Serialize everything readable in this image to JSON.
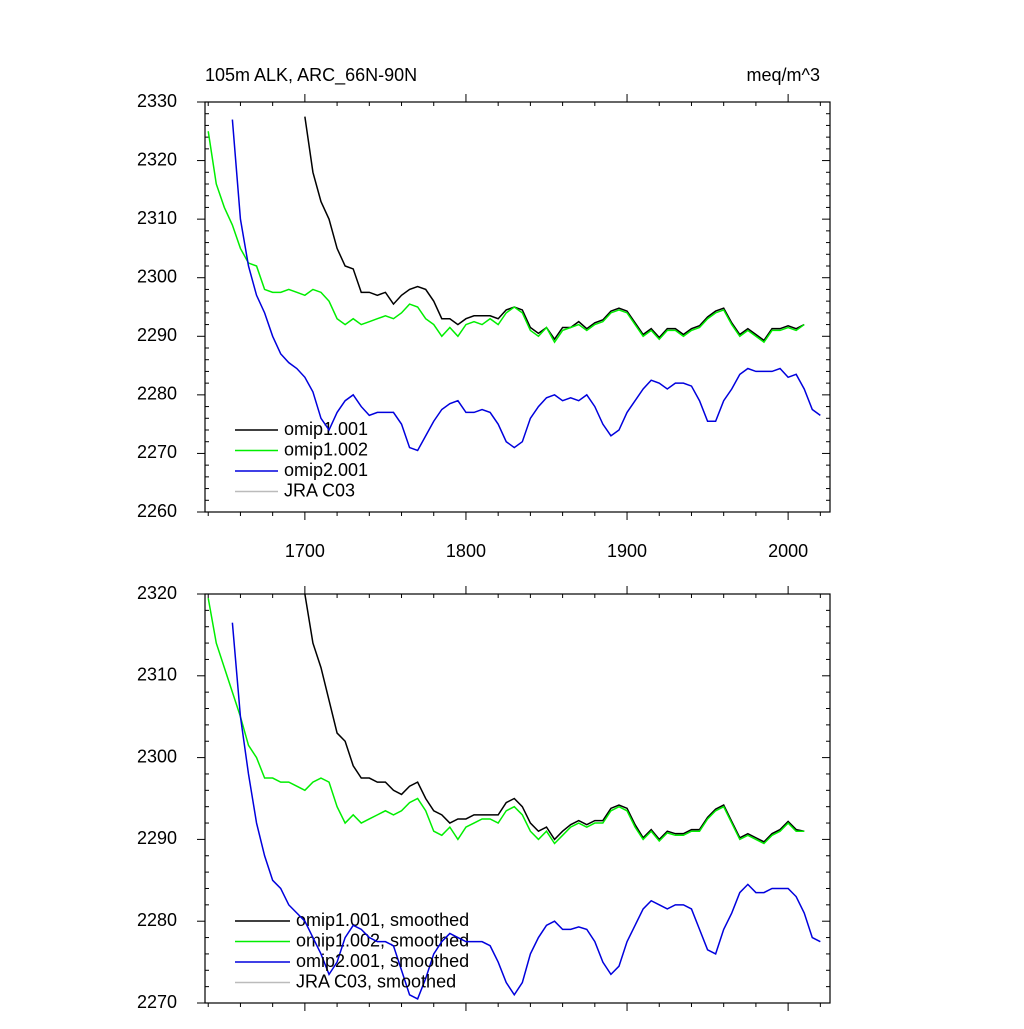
{
  "chart_data": [
    {
      "type": "line",
      "title": "105m ALK, ARC_66N-90N",
      "units": "meq/m^3",
      "xlim": [
        1638,
        2026
      ],
      "xticks": [
        1700,
        1800,
        1900,
        2000
      ],
      "ylim": [
        2260,
        2330
      ],
      "yticks": [
        2260,
        2270,
        2280,
        2290,
        2300,
        2310,
        2320,
        2330
      ],
      "legend": "lower left",
      "x": [
        1640,
        1645,
        1650,
        1655,
        1660,
        1665,
        1670,
        1675,
        1680,
        1685,
        1690,
        1695,
        1700,
        1705,
        1710,
        1715,
        1720,
        1725,
        1730,
        1735,
        1740,
        1745,
        1750,
        1755,
        1760,
        1765,
        1770,
        1775,
        1780,
        1785,
        1790,
        1795,
        1800,
        1805,
        1810,
        1815,
        1820,
        1825,
        1830,
        1835,
        1840,
        1845,
        1850,
        1855,
        1860,
        1865,
        1870,
        1875,
        1880,
        1885,
        1890,
        1895,
        1900,
        1905,
        1910,
        1915,
        1920,
        1925,
        1930,
        1935,
        1940,
        1945,
        1950,
        1955,
        1960,
        1965,
        1970,
        1975,
        1980,
        1985,
        1990,
        1995,
        2000,
        2005,
        2010,
        2015,
        2020
      ],
      "series": [
        {
          "name": "omip1.001",
          "color": "#000000",
          "values": [
            null,
            null,
            null,
            null,
            null,
            null,
            null,
            null,
            null,
            null,
            null,
            null,
            2327.5,
            2318,
            2313,
            2310,
            2305,
            2302,
            2301.5,
            2297.5,
            2297.5,
            2297,
            2297.5,
            2295.5,
            2297,
            2298,
            2298.5,
            2298,
            2296,
            2293,
            2293,
            2292,
            2293,
            2293.5,
            2293.5,
            2293.5,
            2293,
            2294.5,
            2295,
            2294.5,
            2291.5,
            2290.5,
            2291.5,
            2289.5,
            2291.5,
            2291.5,
            2292.5,
            2291.3,
            2292.3,
            2292.8,
            2294.3,
            2294.8,
            2294.3,
            2292.3,
            2290.3,
            2291.3,
            2289.8,
            2291.3,
            2291.3,
            2290.3,
            2291.3,
            2291.8,
            2293.3,
            2294.3,
            2294.8,
            2292.3,
            2290.3,
            2291.3,
            2290.3,
            2289.3,
            2291.3,
            2291.3,
            2291.8,
            2291.3,
            2292,
            null,
            null
          ]
        },
        {
          "name": "omip1.002",
          "color": "#00ee00",
          "values": [
            2325,
            2316,
            2312,
            2309,
            2305,
            2302.5,
            2302,
            2298,
            2297.5,
            2297.5,
            2298,
            2297.5,
            2297,
            2298,
            2297.5,
            2296,
            2293,
            2292,
            2293,
            2292,
            2292.5,
            2293,
            2293.5,
            2293,
            2294,
            2295.5,
            2295,
            2293,
            2292,
            2290,
            2291.5,
            2290,
            2292,
            2292.5,
            2292,
            2293,
            2292,
            2294,
            2295,
            2294,
            2291,
            2290,
            2291.5,
            2289,
            2291,
            2291.5,
            2292,
            2291,
            2292,
            2292.5,
            2294,
            2294.5,
            2294,
            2292,
            2290,
            2291,
            2289.5,
            2291,
            2291,
            2290,
            2291,
            2291.5,
            2293,
            2294,
            2294.5,
            2292,
            2290,
            2291,
            2290,
            2289,
            2291,
            2291,
            2291.5,
            2291,
            2292,
            null,
            null
          ]
        },
        {
          "name": "omip2.001",
          "color": "#0000dd",
          "values": [
            null,
            null,
            null,
            2327,
            2310,
            2302,
            2297,
            2294,
            2290,
            2287,
            2285.5,
            2284.5,
            2283,
            2280.5,
            2276,
            2274,
            2277,
            2279,
            2280,
            2278,
            2276.5,
            2277,
            2277,
            2277,
            2275,
            2271,
            2270.5,
            2273,
            2275.5,
            2277.5,
            2278.5,
            2279,
            2277,
            2277,
            2277.5,
            2277,
            2275,
            2272,
            2271,
            2272,
            2276,
            2278,
            2279.5,
            2280,
            2279,
            2279.5,
            2279,
            2280,
            2278,
            2275,
            2273,
            2274,
            2277,
            2279,
            2281,
            2282.5,
            2282,
            2281,
            2282,
            2282,
            2281.5,
            2279,
            2275.5,
            2275.5,
            2279,
            2281,
            2283.5,
            2284.5,
            2284,
            2284,
            2284,
            2284.5,
            2283,
            2283.5,
            2281,
            2277.5,
            2276.5
          ]
        },
        {
          "name": "JRA C03",
          "color": "#bbbbbb",
          "values": [
            null,
            null,
            null,
            null,
            null,
            null,
            null,
            null,
            null,
            null,
            null,
            null,
            null,
            null,
            null,
            null,
            null,
            null,
            null,
            null,
            null,
            null,
            null,
            null,
            null,
            null,
            null,
            null,
            null,
            null,
            null,
            null,
            null,
            null,
            null,
            null,
            null,
            null,
            null,
            null,
            null,
            null,
            null,
            null,
            null,
            null,
            null,
            null,
            null,
            null,
            null,
            null,
            null,
            null,
            null,
            null,
            null,
            null,
            null,
            null,
            null,
            null,
            null,
            null,
            null,
            null,
            null,
            null,
            null,
            null,
            null,
            null,
            null,
            null,
            null,
            null,
            null
          ]
        }
      ]
    },
    {
      "type": "line",
      "xlim": [
        1638,
        2026
      ],
      "xticks": [
        1700,
        1800,
        1900,
        2000
      ],
      "ylim": [
        2270,
        2320
      ],
      "yticks": [
        2270,
        2280,
        2290,
        2300,
        2310,
        2320
      ],
      "legend": "lower left",
      "x": [
        1640,
        1645,
        1650,
        1655,
        1660,
        1665,
        1670,
        1675,
        1680,
        1685,
        1690,
        1695,
        1700,
        1705,
        1710,
        1715,
        1720,
        1725,
        1730,
        1735,
        1740,
        1745,
        1750,
        1755,
        1760,
        1765,
        1770,
        1775,
        1780,
        1785,
        1790,
        1795,
        1800,
        1805,
        1810,
        1815,
        1820,
        1825,
        1830,
        1835,
        1840,
        1845,
        1850,
        1855,
        1860,
        1865,
        1870,
        1875,
        1880,
        1885,
        1890,
        1895,
        1900,
        1905,
        1910,
        1915,
        1920,
        1925,
        1930,
        1935,
        1940,
        1945,
        1950,
        1955,
        1960,
        1965,
        1970,
        1975,
        1980,
        1985,
        1990,
        1995,
        2000,
        2005,
        2010,
        2015,
        2020
      ],
      "series": [
        {
          "name": "omip1.001, smoothed",
          "color": "#000000",
          "values": [
            null,
            null,
            null,
            null,
            null,
            null,
            null,
            null,
            null,
            null,
            null,
            null,
            2320,
            2314,
            2311,
            2307,
            2303,
            2302,
            2299,
            2297.5,
            2297.5,
            2297,
            2297,
            2296,
            2295.5,
            2296.5,
            2297,
            2295,
            2293.5,
            2293,
            2292,
            2292.5,
            2292.5,
            2293,
            2293,
            2293,
            2293,
            2294.5,
            2295,
            2294,
            2292,
            2291,
            2291.5,
            2290,
            2291,
            2291.8,
            2292.3,
            2291.8,
            2292.3,
            2292.3,
            2293.8,
            2294.2,
            2293.8,
            2291.8,
            2290.2,
            2291.2,
            2290,
            2291,
            2290.7,
            2290.7,
            2291.2,
            2291.2,
            2292.7,
            2293.7,
            2294.2,
            2292.2,
            2290.2,
            2290.7,
            2290.2,
            2289.7,
            2290.7,
            2291.2,
            2292.2,
            2291.2,
            2291,
            null,
            null
          ]
        },
        {
          "name": "omip1.002, smoothed",
          "color": "#00ee00",
          "values": [
            2319.5,
            2314,
            2311,
            2308,
            2305,
            2301.5,
            2300,
            2297.5,
            2297.5,
            2297,
            2297,
            2296.5,
            2296,
            2297,
            2297.5,
            2297,
            2294,
            2292,
            2293,
            2292,
            2292.5,
            2293,
            2293.5,
            2293,
            2293.5,
            2294.5,
            2295,
            2293.5,
            2291,
            2290.5,
            2291.5,
            2290,
            2291.5,
            2292,
            2292.5,
            2292.5,
            2292,
            2293.5,
            2294,
            2293,
            2291,
            2290,
            2291,
            2289.5,
            2290.5,
            2291.5,
            2292,
            2291.5,
            2292,
            2292,
            2293.5,
            2294,
            2293.5,
            2291.5,
            2290,
            2291,
            2289.8,
            2290.8,
            2290.5,
            2290.5,
            2291,
            2291,
            2292.5,
            2293.5,
            2294,
            2292,
            2290,
            2290.5,
            2290,
            2289.5,
            2290.5,
            2291,
            2292,
            2291,
            2291,
            null,
            null
          ]
        },
        {
          "name": "omip2.001, smoothed",
          "color": "#0000dd",
          "values": [
            null,
            null,
            null,
            2316.5,
            2305,
            2298,
            2292,
            2288,
            2285,
            2284,
            2282,
            2281,
            2280,
            2278,
            2276,
            2273.5,
            2275,
            2278,
            2279.5,
            2279,
            2278,
            2277.5,
            2277.5,
            2277,
            2274,
            2271,
            2270.5,
            2273,
            2276,
            2277.5,
            2278.5,
            2278,
            2277.5,
            2277.5,
            2277.5,
            2277,
            2275,
            2272.5,
            2271,
            2272.5,
            2276,
            2278,
            2279.5,
            2280,
            2279,
            2279,
            2279.3,
            2279,
            2277.5,
            2275,
            2273.5,
            2274.5,
            2277.5,
            2279.5,
            2281.5,
            2282.5,
            2282,
            2281.5,
            2282,
            2282,
            2281.5,
            2279,
            2276.5,
            2276,
            2279,
            2281,
            2283.5,
            2284.5,
            2283.5,
            2283.5,
            2284,
            2284,
            2284,
            2283,
            2281,
            2278,
            2277.5
          ]
        },
        {
          "name": "JRA C03, smoothed",
          "color": "#bbbbbb",
          "values": [
            null,
            null,
            null,
            null,
            null,
            null,
            null,
            null,
            null,
            null,
            null,
            null,
            null,
            null,
            null,
            null,
            null,
            null,
            null,
            null,
            null,
            null,
            null,
            null,
            null,
            null,
            null,
            null,
            null,
            null,
            null,
            null,
            null,
            null,
            null,
            null,
            null,
            null,
            null,
            null,
            null,
            null,
            null,
            null,
            null,
            null,
            null,
            null,
            null,
            null,
            null,
            null,
            null,
            null,
            null,
            null,
            null,
            null,
            null,
            null,
            null,
            null,
            null,
            null,
            null,
            null,
            null,
            null,
            null,
            null,
            null,
            null,
            null,
            null,
            null,
            null,
            null
          ]
        }
      ]
    }
  ]
}
